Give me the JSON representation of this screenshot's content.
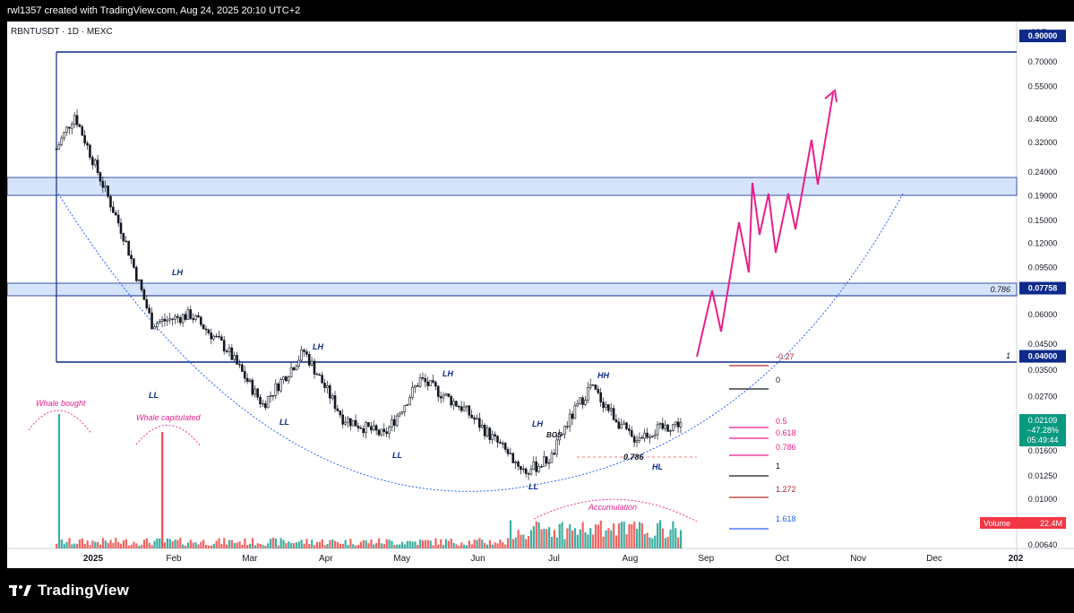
{
  "header": {
    "attribution": "rwl1357 created with TradingView.com, Aug 24, 2025 20:10 UTC+2"
  },
  "symbol_line": "RBNTUSDT · 1D · MEXC",
  "price_axis": {
    "currency": "USDT",
    "ticks": [
      "0.90000",
      "0.70000",
      "0.55000",
      "0.40000",
      "0.32000",
      "0.24000",
      "0.19000",
      "0.15000",
      "0.12000",
      "0.09500",
      "0.07758",
      "0.06000",
      "0.04500",
      "0.04000",
      "0.03500",
      "0.02700",
      "0.02109",
      "0.01600",
      "0.01250",
      "0.01000",
      "0.00640"
    ],
    "highlight_labels": [
      {
        "text": "0.90000",
        "bg": "#0d2a8a"
      },
      {
        "text": "0.07758",
        "bg": "#0d2a8a"
      },
      {
        "text": "0.04000",
        "bg": "#0d2a8a"
      }
    ],
    "current_price": {
      "price": "0.02109",
      "change": "−47.28%",
      "countdown": "05:49:44",
      "bg": "#089981"
    },
    "volume_badge": {
      "label": "Volume",
      "value": "22.4M",
      "bg": "#f23645"
    }
  },
  "time_axis": {
    "ticks": [
      "2025",
      "Feb",
      "Mar",
      "Apr",
      "May",
      "Jun",
      "Jul",
      "Aug",
      "Sep",
      "Oct",
      "Nov",
      "Dec",
      "202"
    ]
  },
  "annotations": {
    "structure": [
      {
        "text": "LH"
      },
      {
        "text": "LL"
      },
      {
        "text": "LH"
      },
      {
        "text": "LL"
      },
      {
        "text": "LL"
      },
      {
        "text": "LH"
      },
      {
        "text": "LL"
      },
      {
        "text": "LH"
      },
      {
        "text": "BOS"
      },
      {
        "text": "HH"
      },
      {
        "text": "HL"
      },
      {
        "text": "0.786"
      }
    ],
    "pink": [
      {
        "text": "Whale bought"
      },
      {
        "text": "Whale capitulated"
      },
      {
        "text": "Accumulation"
      }
    ],
    "box_labels": [
      "0.786",
      "1"
    ]
  },
  "fib_levels": [
    {
      "label": "-0.27",
      "color": "#b22833"
    },
    {
      "label": "0",
      "color": "#131722"
    },
    {
      "label": "0.5",
      "color": "#e91e8c"
    },
    {
      "label": "0.618",
      "color": "#e91e8c"
    },
    {
      "label": "0.786",
      "color": "#e91e8c"
    },
    {
      "label": "1",
      "color": "#131722"
    },
    {
      "label": "1.272",
      "color": "#b22833"
    },
    {
      "label": "1.618",
      "color": "#2962ff"
    }
  ],
  "colors": {
    "candle": "#131722",
    "zone_fill": "#d6e4fb",
    "zone_border": "#0d2a8a",
    "curve": "#2962ff",
    "projection": "#e91e8c",
    "vol_up": "#26a69a",
    "vol_down": "#ef5350",
    "whale_bought_bar": "#26a69a",
    "whale_capitulated_bar": "#f23645"
  },
  "footer": {
    "brand": "TradingView"
  },
  "chart_data": {
    "type": "candlestick",
    "title": "RBNTUSDT · 1D · MEXC",
    "y_scale": "log",
    "ylim": [
      0.0064,
      1.0
    ],
    "x_range": [
      "2025-01",
      "2026-01"
    ],
    "approx_closes": [
      {
        "date": "2024-12-25",
        "price": 0.3
      },
      {
        "date": "2025-01-01",
        "price": 0.42
      },
      {
        "date": "2025-01-10",
        "price": 0.24
      },
      {
        "date": "2025-01-20",
        "price": 0.13
      },
      {
        "date": "2025-01-31",
        "price": 0.055
      },
      {
        "date": "2025-02-15",
        "price": 0.06
      },
      {
        "date": "2025-03-01",
        "price": 0.043
      },
      {
        "date": "2025-03-15",
        "price": 0.025
      },
      {
        "date": "2025-03-31",
        "price": 0.042
      },
      {
        "date": "2025-04-15",
        "price": 0.022
      },
      {
        "date": "2025-05-01",
        "price": 0.0185
      },
      {
        "date": "2025-05-15",
        "price": 0.032
      },
      {
        "date": "2025-06-01",
        "price": 0.024
      },
      {
        "date": "2025-06-25",
        "price": 0.013
      },
      {
        "date": "2025-07-05",
        "price": 0.015
      },
      {
        "date": "2025-07-10",
        "price": 0.02
      },
      {
        "date": "2025-07-20",
        "price": 0.03
      },
      {
        "date": "2025-08-05",
        "price": 0.018
      },
      {
        "date": "2025-08-24",
        "price": 0.02109
      }
    ],
    "zones": [
      {
        "from": 0.2,
        "to": 0.25
      },
      {
        "from": 0.07758,
        "to": 0.086
      }
    ],
    "levels": [
      0.9,
      0.07758,
      0.04
    ],
    "projection_path": [
      0.044,
      0.082,
      0.056,
      0.16,
      0.095,
      0.24,
      0.14,
      0.22,
      0.12,
      0.21,
      0.15,
      0.36,
      0.24,
      0.63
    ]
  }
}
